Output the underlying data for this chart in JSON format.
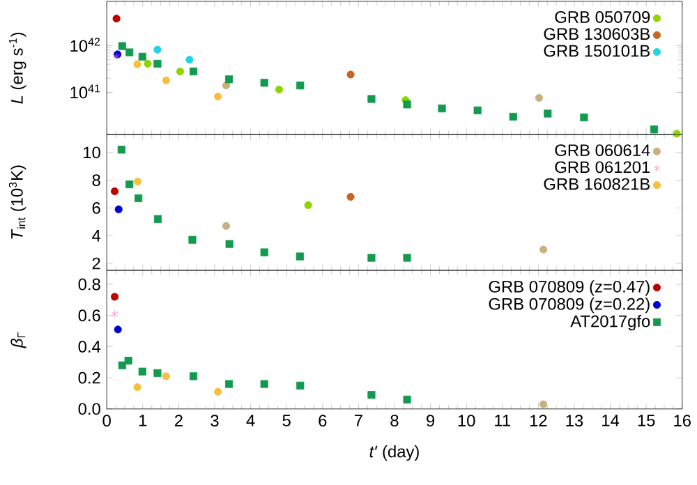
{
  "chart_data": [
    {
      "type": "scatter",
      "ylabel": "*L* (erg s$^{-1}$)",
      "log": "y",
      "xlim": [
        0,
        16
      ],
      "xticks": [
        0,
        1,
        2,
        3,
        4,
        5,
        6,
        7,
        8,
        9,
        10,
        11,
        12,
        13,
        14,
        15,
        16
      ],
      "ylim": [
        1.25e+40,
        8.9e+42
      ],
      "yticks": [
        {
          "value": 1e+41,
          "label": "10$^{41}$"
        },
        {
          "value": 1e+42,
          "label": "10$^{42}$"
        }
      ],
      "tick_labels": "y",
      "legend": "top right",
      "series": [
        {
          "name": "GRB 050709",
          "color": "#8fd400",
          "marker": "circle",
          "x": [
            1.14,
            2.04,
            4.79,
            8.31,
            15.85
          ],
          "values": [
            4.1e+41,
            2.8e+41,
            1.15e+41,
            6.8e+40,
            1.3e+40
          ]
        },
        {
          "name": "GRB 130603B",
          "color": "#c8641e",
          "marker": "circle",
          "x": [
            6.78
          ],
          "values": [
            2.4e+41
          ]
        },
        {
          "name": "GRB 150101B",
          "color": "#22d3e6",
          "marker": "circle",
          "x": [
            1.41,
            2.3
          ],
          "values": [
            8.2e+41,
            5e+41
          ]
        },
        {
          "color": "#c00000",
          "marker": "circle",
          "x": [
            0.27
          ],
          "values": [
            3.8e+42
          ]
        },
        {
          "color": "#0000d0",
          "marker": "circle",
          "x": [
            0.3
          ],
          "values": [
            6.5e+41
          ]
        },
        {
          "color": "#e060e0",
          "marker": "cross",
          "x": [
            0.27
          ],
          "values": [
            5.9e+41
          ]
        },
        {
          "color": "#f5c040",
          "marker": "circle",
          "x": [
            0.85,
            1.65,
            3.09
          ],
          "values": [
            4e+41,
            1.8e+41,
            8.1e+40
          ]
        },
        {
          "color": "#c8b080",
          "marker": "circle",
          "x": [
            3.32,
            12.02
          ],
          "values": [
            1.4e+41,
            7.6e+40
          ]
        },
        {
          "color": "#139a4f",
          "marker": "square",
          "x": [
            0.43,
            0.63,
            0.99,
            1.41,
            2.41,
            3.4,
            4.38,
            5.38,
            7.36,
            8.35,
            9.32,
            10.31,
            11.3,
            12.26,
            13.27,
            15.22
          ],
          "values": [
            9.8e+41,
            7.2e+41,
            5.8e+41,
            4.1e+41,
            2.8e+41,
            1.9e+41,
            1.6e+41,
            1.4e+41,
            7.2e+40,
            5.5e+40,
            4.5e+40,
            4.1e+40,
            3e+40,
            3.5e+40,
            2.9e+40,
            1.6e+40
          ]
        }
      ]
    },
    {
      "type": "scatter",
      "ylabel": "*T*$_{int}$ (10$^{3}$K)",
      "xlim": [
        0,
        16
      ],
      "xticks": [
        0,
        1,
        2,
        3,
        4,
        5,
        6,
        7,
        8,
        9,
        10,
        11,
        12,
        13,
        14,
        15,
        16
      ],
      "ylim": [
        1.5,
        11.3
      ],
      "yticks": [
        2,
        4,
        6,
        8,
        10
      ],
      "tick_labels": "y",
      "legend": "top right",
      "series": [
        {
          "name": "GRB 060614",
          "color": "#c8b080",
          "marker": "circle",
          "x": [
            3.32,
            12.14
          ],
          "values": [
            4.7,
            3.0
          ]
        },
        {
          "name": "GRB 061201",
          "color": "#f080c8",
          "marker": "cross"
        },
        {
          "name": "GRB 160821B",
          "color": "#f5c040",
          "marker": "circle",
          "x": [
            0.86
          ],
          "values": [
            7.9
          ]
        },
        {
          "color": "#c00000",
          "marker": "circle",
          "x": [
            0.22
          ],
          "values": [
            7.2
          ]
        },
        {
          "color": "#0000d0",
          "marker": "circle",
          "x": [
            0.33
          ],
          "values": [
            5.9
          ]
        },
        {
          "color": "#8fd400",
          "marker": "circle",
          "x": [
            5.6
          ],
          "values": [
            6.2
          ]
        },
        {
          "color": "#c8641e",
          "marker": "circle",
          "x": [
            6.78
          ],
          "values": [
            6.8
          ]
        },
        {
          "color": "#139a4f",
          "marker": "square",
          "x": [
            0.41,
            0.63,
            0.88,
            1.42,
            2.38,
            3.41,
            4.38,
            5.37,
            7.36,
            8.35
          ],
          "values": [
            10.2,
            7.7,
            6.7,
            5.2,
            3.7,
            3.4,
            2.8,
            2.5,
            2.4,
            2.4
          ]
        }
      ]
    },
    {
      "type": "scatter",
      "ylabel": "*β*$_{Γ}$",
      "xlabel": "*t′* (day)",
      "xlim": [
        0,
        16
      ],
      "xticks": [
        0,
        1,
        2,
        3,
        4,
        5,
        6,
        7,
        8,
        9,
        10,
        11,
        12,
        13,
        14,
        15,
        16
      ],
      "ylim": [
        0,
        0.89
      ],
      "yticks": [
        {
          "value": 0,
          "label": "0.0"
        },
        {
          "value": 0.2,
          "label": "0.2"
        },
        {
          "value": 0.4,
          "label": "0.4"
        },
        {
          "value": 0.6,
          "label": "0.6"
        },
        {
          "value": 0.8,
          "label": "0.8"
        }
      ],
      "legend": "top right",
      "series": [
        {
          "name": "GRB 070809 (z=0.47)",
          "color": "#c00000",
          "marker": "circle",
          "x": [
            0.22
          ],
          "values": [
            0.72
          ]
        },
        {
          "name": "GRB 070809 (z=0.22)",
          "color": "#0000d0",
          "marker": "circle",
          "x": [
            0.31
          ],
          "values": [
            0.51
          ]
        },
        {
          "name": "AT2017gfo",
          "color": "#139a4f",
          "marker": "square",
          "x": [
            0.43,
            0.6,
            0.99,
            1.41,
            2.41,
            3.4,
            4.38,
            5.38,
            7.36,
            8.35
          ],
          "values": [
            0.28,
            0.31,
            0.24,
            0.23,
            0.21,
            0.16,
            0.16,
            0.15,
            0.09,
            0.06
          ]
        },
        {
          "color": "#f080c8",
          "marker": "cross",
          "x": [
            0.22
          ],
          "values": [
            0.61
          ]
        },
        {
          "color": "#f5c040",
          "marker": "circle",
          "x": [
            0.85,
            1.65,
            3.09
          ],
          "values": [
            0.14,
            0.21,
            0.11
          ]
        },
        {
          "color": "#c8b080",
          "marker": "circle",
          "x": [
            12.14
          ],
          "values": [
            0.03
          ]
        }
      ]
    }
  ]
}
